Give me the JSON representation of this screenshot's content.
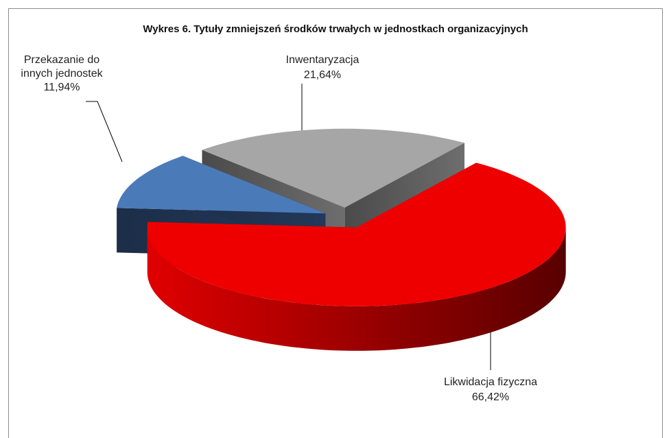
{
  "chart_data": {
    "type": "pie",
    "title": "Wykres 6. Tytuły zmniejszeń środków trwałych w jednostkach organizacyjnych",
    "categories": [
      "Przekazanie do innych jednostek",
      "Inwentaryzacja",
      "Likwidacja fizyczna"
    ],
    "values": [
      11.94,
      21.64,
      66.42
    ],
    "value_labels": [
      "11,94%",
      "21,64%",
      "66,42%"
    ],
    "colors": [
      "#4a7ab8",
      "#a6a6a6",
      "#ee0000"
    ]
  }
}
